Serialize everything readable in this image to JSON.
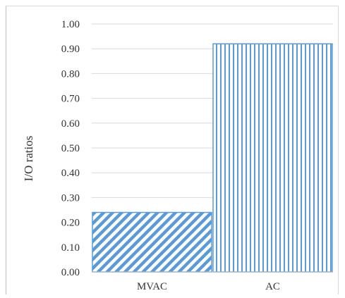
{
  "chart_data": {
    "type": "bar",
    "categories": [
      "MVAC",
      "AC"
    ],
    "values": [
      0.24,
      0.92
    ],
    "ylabel": "I/O ratios",
    "xlabel": "",
    "ylim": [
      0,
      1.0
    ],
    "y_ticks": [
      "0.00",
      "0.10",
      "0.20",
      "0.30",
      "0.40",
      "0.50",
      "0.60",
      "0.70",
      "0.80",
      "0.90",
      "1.00"
    ],
    "grid": true,
    "bar_fills": [
      "diagonal-stripes",
      "vertical-stripes"
    ],
    "colors": {
      "bar": "#5b9bd5",
      "grid": "#d9d9d9",
      "axis": "#bfbfbf",
      "text": "#333333"
    }
  }
}
